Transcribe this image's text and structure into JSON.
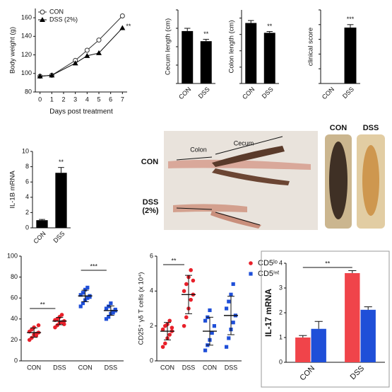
{
  "chart_data": [
    {
      "type": "line",
      "ylabel": "Body weight (g)",
      "xlabel": "Days post treatment",
      "x": [
        0,
        1,
        3,
        4,
        5,
        7
      ],
      "xlim": [
        -0.4,
        7.4
      ],
      "xticks": [
        0,
        1,
        2,
        3,
        4,
        5,
        6,
        7
      ],
      "ylim": [
        80,
        170
      ],
      "yticks": [
        80,
        100,
        120,
        140,
        160
      ],
      "legend": "upper left",
      "series": [
        {
          "name": "CON",
          "marker": "open-circle",
          "color": "#333333",
          "values": [
            97,
            98,
            114,
            125,
            136,
            162
          ]
        },
        {
          "name": "DSS (2%)",
          "marker": "filled-triangle",
          "color": "#000000",
          "values": [
            97,
            98,
            111,
            119,
            122,
            149
          ]
        }
      ],
      "annotations": [
        "**"
      ]
    },
    {
      "type": "bar",
      "ylabel": "Cecum length (cm)",
      "categories": [
        "CON",
        "DSS"
      ],
      "values": [
        5.7,
        4.6
      ],
      "errors": [
        0.3,
        0.2
      ],
      "ylim": [
        0,
        8
      ],
      "yticks": [
        0,
        2,
        4,
        6,
        8
      ],
      "show_tick_labels": false,
      "color": "#000000",
      "annotations": [
        "**"
      ]
    },
    {
      "type": "bar",
      "ylabel": "Colon length (cm)",
      "categories": [
        "CON",
        "DSS"
      ],
      "values": [
        3.7,
        3.1
      ],
      "errors": [
        0.15,
        0.08
      ],
      "ylim": [
        0,
        4.5
      ],
      "yticks": [
        0,
        1,
        2,
        3,
        4
      ],
      "show_tick_labels": false,
      "color": "#000000",
      "annotations": [
        "**"
      ]
    },
    {
      "type": "bar",
      "ylabel": "clinical score",
      "categories": [
        "CON",
        "DSS"
      ],
      "values": [
        0,
        19
      ],
      "errors": [
        0,
        1
      ],
      "ylim": [
        0,
        25
      ],
      "yticks": [
        0,
        5,
        10,
        15,
        20,
        25
      ],
      "show_tick_labels": false,
      "color": "#000000",
      "annotations": [
        "***"
      ]
    },
    {
      "type": "bar",
      "ylabel": "IL-1B mRNA",
      "categories": [
        "CON",
        "DSS"
      ],
      "values": [
        1.0,
        7.2
      ],
      "errors": [
        0.1,
        0.7
      ],
      "ylim": [
        0,
        10
      ],
      "yticks": [
        0,
        2,
        4,
        6,
        8,
        10
      ],
      "color": "#000000",
      "annotations": [
        "**"
      ]
    },
    {
      "type": "strip",
      "categories": [
        "CON",
        "DSS",
        "CON",
        "DSS"
      ],
      "ylim": [
        0,
        100
      ],
      "yticks": [
        0,
        20,
        40,
        60,
        80,
        100
      ],
      "series": [
        {
          "color": "#e8202a",
          "marker": "circle",
          "values": [
            [
              20,
              22,
              25,
              26,
              27,
              28,
              30,
              32,
              24,
              34
            ],
            [
              32,
              34,
              36,
              37,
              38,
              39,
              40,
              42,
              44,
              35
            ],
            null,
            null
          ],
          "means": [
            27,
            38,
            null,
            null
          ],
          "errors": [
            4.5,
            3.5,
            null,
            null
          ]
        },
        {
          "color": "#1f4fd8",
          "marker": "square",
          "values": [
            null,
            null,
            [
              52,
              55,
              58,
              60,
              62,
              63,
              65,
              68,
              70,
              61
            ],
            [
              40,
              42,
              45,
              47,
              48,
              50,
              52,
              55,
              46,
              49
            ]
          ],
          "means": [
            null,
            null,
            62,
            48
          ],
          "errors": [
            null,
            null,
            5.5,
            4.5
          ]
        }
      ],
      "annotations": [
        "**",
        "***"
      ]
    },
    {
      "type": "strip",
      "ylabel": "CD25⁺ γδ T cells (x 10⁴)",
      "categories": [
        "CON",
        "DSS",
        "CON",
        "DSS"
      ],
      "ylim": [
        0,
        6
      ],
      "yticks": [
        0,
        2,
        4,
        6
      ],
      "legend": "upper right",
      "series": [
        {
          "name": "CD5ˡᵒ",
          "color": "#e8202a",
          "marker": "circle",
          "values": [
            [
              0.8,
              1.0,
              1.3,
              1.5,
              1.7,
              1.8,
              2.0,
              2.1,
              2.3,
              1.9
            ],
            [
              2.0,
              2.5,
              3.0,
              3.5,
              3.8,
              4.0,
              4.4,
              4.8,
              5.2,
              4.6
            ],
            null,
            null
          ],
          "means": [
            1.7,
            3.8,
            null,
            null
          ],
          "errors": [
            0.5,
            1.1,
            null,
            null
          ]
        },
        {
          "name": "CD5ⁱⁿᵗ",
          "color": "#1f4fd8",
          "marker": "square",
          "values": [
            null,
            null,
            [
              0.6,
              0.9,
              1.2,
              1.6,
              2.0,
              2.3,
              2.5,
              2.9
            ],
            [
              0.8,
              1.3,
              1.8,
              2.2,
              2.6,
              3.0,
              3.4,
              3.8,
              4.4
            ]
          ],
          "means": [
            null,
            null,
            1.7,
            2.6
          ],
          "errors": [
            null,
            null,
            0.8,
            1.1
          ]
        }
      ],
      "annotations": [
        "**"
      ]
    },
    {
      "type": "bar",
      "ylabel": "IL-17 mRNA",
      "categories": [
        "CON",
        "DSS"
      ],
      "ylim": [
        0,
        4
      ],
      "yticks": [
        0,
        1,
        2,
        3,
        4
      ],
      "frame": true,
      "series": [
        {
          "color": "#f0444a",
          "values": [
            1.0,
            3.6
          ],
          "errors": [
            0.08,
            0.1
          ]
        },
        {
          "color": "#1f4fd8",
          "values": [
            1.35,
            2.12
          ],
          "errors": [
            0.3,
            0.12
          ]
        }
      ],
      "annotations": [
        "**"
      ]
    }
  ],
  "photo": {
    "row_labels": [
      "CON",
      "DSS (2%)"
    ],
    "segment_labels": [
      "Colon",
      "Cecum"
    ],
    "panel_labels": [
      "CON",
      "DSS"
    ]
  }
}
